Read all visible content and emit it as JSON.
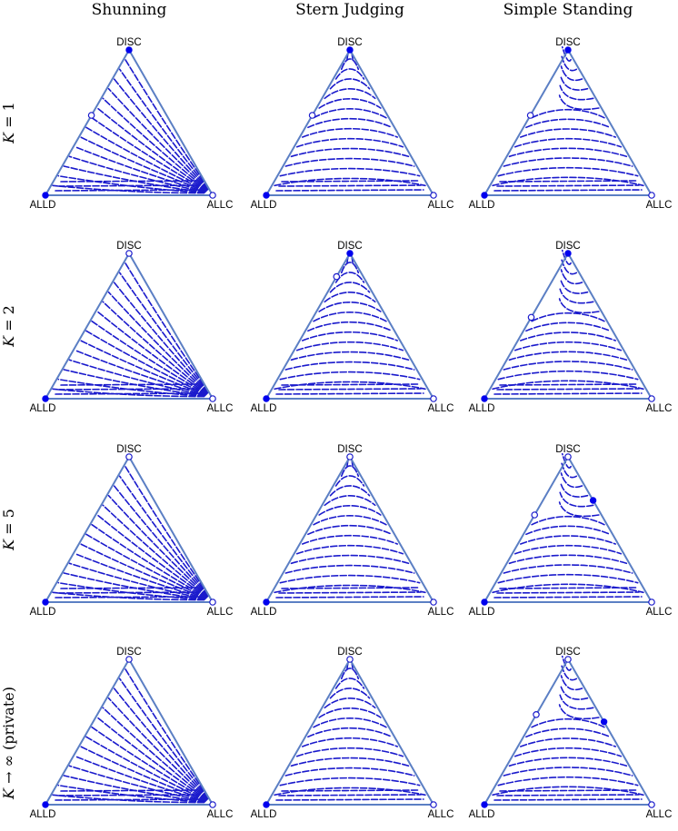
{
  "columns": [
    {
      "key": "shunning",
      "title": "Shunning"
    },
    {
      "key": "stern",
      "title": "Stern Judging"
    },
    {
      "key": "simple",
      "title": "Simple Standing"
    }
  ],
  "rows": [
    {
      "key": "k1",
      "label_k": "K",
      "label_rest": " = 1"
    },
    {
      "key": "k2",
      "label_k": "K",
      "label_rest": " = 2"
    },
    {
      "key": "k5",
      "label_k": "K",
      "label_rest": " = 5"
    },
    {
      "key": "kinf",
      "label_k": "K",
      "label_rest": " → ∞ (private)"
    }
  ],
  "vertex_labels": {
    "top": "DISC",
    "left": "ALLD",
    "right": "ALLC"
  },
  "colors": {
    "edge": "#5b7fc4",
    "flow": "#1a1acc",
    "stable_point": "#0000ee"
  },
  "panels": {
    "k1": {
      "shunning": {
        "field": "shun",
        "points": [
          {
            "disc": 1.0,
            "allc": 0.0,
            "stable": true
          },
          {
            "disc": 0.0,
            "allc": 0.0,
            "stable": true
          },
          {
            "disc": 0.0,
            "allc": 1.0,
            "stable": false
          },
          {
            "disc": 0.55,
            "allc": 0.0,
            "stable": false
          }
        ]
      },
      "stern": {
        "field": "stern",
        "points": [
          {
            "disc": 1.0,
            "allc": 0.0,
            "stable": true
          },
          {
            "disc": 0.0,
            "allc": 0.0,
            "stable": true
          },
          {
            "disc": 0.0,
            "allc": 1.0,
            "stable": false
          },
          {
            "disc": 0.55,
            "allc": 0.0,
            "stable": false
          }
        ]
      },
      "simple": {
        "field": "simple",
        "points": [
          {
            "disc": 1.0,
            "allc": 0.0,
            "stable": true
          },
          {
            "disc": 0.0,
            "allc": 0.0,
            "stable": true
          },
          {
            "disc": 0.0,
            "allc": 1.0,
            "stable": false
          },
          {
            "disc": 0.55,
            "allc": 0.0,
            "stable": false
          }
        ]
      }
    },
    "k2": {
      "shunning": {
        "field": "shun",
        "points": [
          {
            "disc": 1.0,
            "allc": 0.0,
            "stable": false
          },
          {
            "disc": 0.0,
            "allc": 0.0,
            "stable": true
          },
          {
            "disc": 0.0,
            "allc": 1.0,
            "stable": false
          }
        ]
      },
      "stern": {
        "field": "stern",
        "points": [
          {
            "disc": 1.0,
            "allc": 0.0,
            "stable": true
          },
          {
            "disc": 0.0,
            "allc": 0.0,
            "stable": true
          },
          {
            "disc": 0.0,
            "allc": 1.0,
            "stable": false
          },
          {
            "disc": 0.84,
            "allc": 0.0,
            "stable": false
          }
        ]
      },
      "simple": {
        "field": "simple",
        "points": [
          {
            "disc": 1.0,
            "allc": 0.0,
            "stable": true
          },
          {
            "disc": 0.0,
            "allc": 0.0,
            "stable": true
          },
          {
            "disc": 0.0,
            "allc": 1.0,
            "stable": false
          },
          {
            "disc": 0.56,
            "allc": 0.0,
            "stable": false
          }
        ]
      }
    },
    "k5": {
      "shunning": {
        "field": "shun",
        "points": [
          {
            "disc": 1.0,
            "allc": 0.0,
            "stable": false
          },
          {
            "disc": 0.0,
            "allc": 0.0,
            "stable": true
          },
          {
            "disc": 0.0,
            "allc": 1.0,
            "stable": false
          }
        ]
      },
      "stern": {
        "field": "stern",
        "points": [
          {
            "disc": 1.0,
            "allc": 0.0,
            "stable": false
          },
          {
            "disc": 0.0,
            "allc": 0.0,
            "stable": true
          },
          {
            "disc": 0.0,
            "allc": 1.0,
            "stable": false
          }
        ]
      },
      "simple": {
        "field": "simple",
        "points": [
          {
            "disc": 1.0,
            "allc": 0.0,
            "stable": false
          },
          {
            "disc": 0.0,
            "allc": 0.0,
            "stable": true
          },
          {
            "disc": 0.0,
            "allc": 1.0,
            "stable": false
          },
          {
            "disc": 0.6,
            "allc": 0.0,
            "stable": false
          },
          {
            "disc": 0.7,
            "allc": 0.3,
            "stable": true
          }
        ]
      }
    },
    "kinf": {
      "shunning": {
        "field": "shun",
        "points": [
          {
            "disc": 1.0,
            "allc": 0.0,
            "stable": false
          },
          {
            "disc": 0.0,
            "allc": 0.0,
            "stable": true
          },
          {
            "disc": 0.0,
            "allc": 1.0,
            "stable": false
          }
        ]
      },
      "stern": {
        "field": "stern",
        "points": [
          {
            "disc": 1.0,
            "allc": 0.0,
            "stable": false
          },
          {
            "disc": 0.0,
            "allc": 0.0,
            "stable": true
          },
          {
            "disc": 0.0,
            "allc": 1.0,
            "stable": false
          }
        ]
      },
      "simple": {
        "field": "simple",
        "points": [
          {
            "disc": 1.0,
            "allc": 0.0,
            "stable": false
          },
          {
            "disc": 0.0,
            "allc": 0.0,
            "stable": true
          },
          {
            "disc": 0.0,
            "allc": 1.0,
            "stable": false
          },
          {
            "disc": 0.62,
            "allc": 0.0,
            "stable": false
          },
          {
            "disc": 0.57,
            "allc": 0.43,
            "stable": true
          }
        ]
      }
    }
  }
}
